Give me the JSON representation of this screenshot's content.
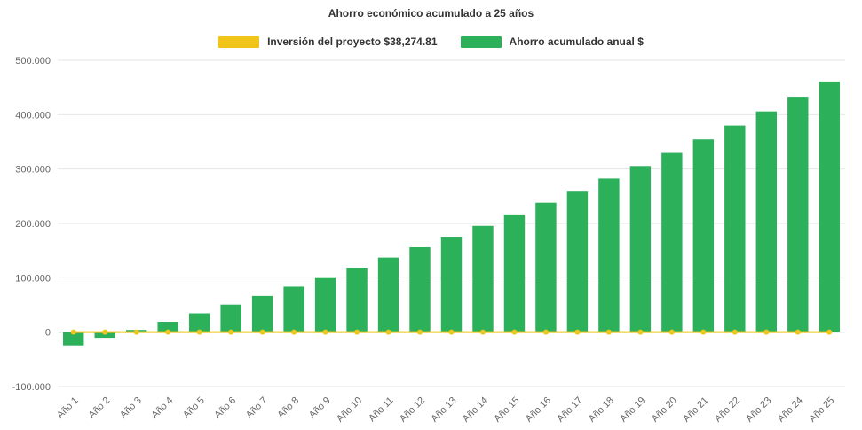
{
  "chart_data": {
    "type": "bar",
    "title": "Ahorro económico acumulado a 25 años",
    "categories": [
      "Año 1",
      "Año 2",
      "Año 3",
      "Año 4",
      "Año 5",
      "Año 6",
      "Año 7",
      "Año 8",
      "Año 9",
      "Año 10",
      "Año 11",
      "Año 12",
      "Año 13",
      "Año 14",
      "Año 15",
      "Año 16",
      "Año 17",
      "Año 18",
      "Año 19",
      "Año 20",
      "Año 21",
      "Año 22",
      "Año 23",
      "Año 24",
      "Año 25"
    ],
    "series": [
      {
        "name": "Inversión del proyecto $38,274.81",
        "type": "line",
        "color": "#F0C419",
        "values": [
          0,
          0,
          0,
          0,
          0,
          0,
          0,
          0,
          0,
          0,
          0,
          0,
          0,
          0,
          0,
          0,
          0,
          0,
          0,
          0,
          0,
          0,
          0,
          0,
          0
        ]
      },
      {
        "name": "Ahorro acumulado anual $",
        "type": "bar",
        "color": "#2CB05A",
        "values": [
          -24500,
          -10500,
          4000,
          19000,
          34500,
          50500,
          66500,
          83500,
          101000,
          118500,
          137000,
          156000,
          175500,
          195500,
          216500,
          238000,
          260000,
          282500,
          305500,
          329500,
          354500,
          380000,
          406000,
          433000,
          461000
        ]
      }
    ],
    "ylim": [
      -100000,
      500000
    ],
    "y_ticks": [
      500000,
      400000,
      300000,
      200000,
      100000,
      0,
      -100000
    ],
    "y_tick_labels": [
      "500.000",
      "400.000",
      "300.000",
      "200.000",
      "100.000",
      "0",
      "-100.000"
    ],
    "grid": true,
    "legend_position": "top",
    "xlabel": "",
    "ylabel": ""
  },
  "colors": {
    "grid_line": "#e6e6e6",
    "zero_line": "#9a9a9a",
    "axis_text": "#666666",
    "title_text": "#333333"
  }
}
